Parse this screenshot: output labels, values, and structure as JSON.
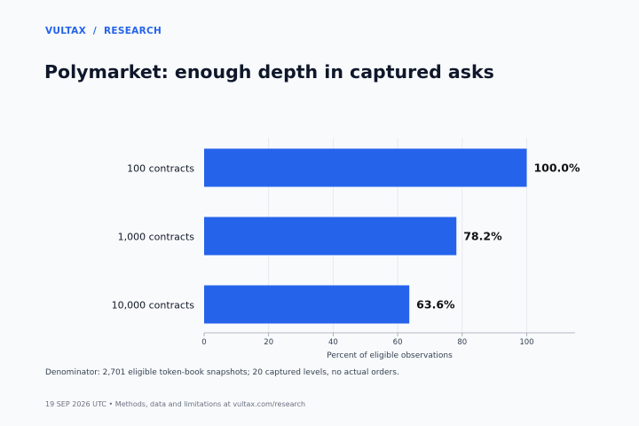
{
  "header": {
    "brand": "VULTAX",
    "separator": "/",
    "section": "RESEARCH",
    "title": "Polymarket: enough depth in captured asks"
  },
  "chart_data": {
    "type": "bar",
    "orientation": "horizontal",
    "categories": [
      "100 contracts",
      "1,000 contracts",
      "10,000 contracts"
    ],
    "values": [
      100.0,
      78.2,
      63.6
    ],
    "value_labels": [
      "100.0%",
      "78.2%",
      "63.6%"
    ],
    "title": "Polymarket: enough depth in captured asks",
    "xlabel": "Percent of eligible observations",
    "ylabel": "",
    "xlim": [
      0,
      115
    ],
    "xticks": [
      0,
      20,
      40,
      60,
      80,
      100
    ],
    "grid": true,
    "legend": "none",
    "bar_color": "#2563eb"
  },
  "note": "Denominator: 2,701 eligible token-book snapshots; 20 captured levels, no actual orders.",
  "footer": "19 SEP 2026 UTC  •  Methods, data and limitations at vultax.com/research",
  "colors": {
    "accent": "#2563eb",
    "title": "#0f172a",
    "grid": "#e5e7eb",
    "axis": "#9ca3af"
  }
}
